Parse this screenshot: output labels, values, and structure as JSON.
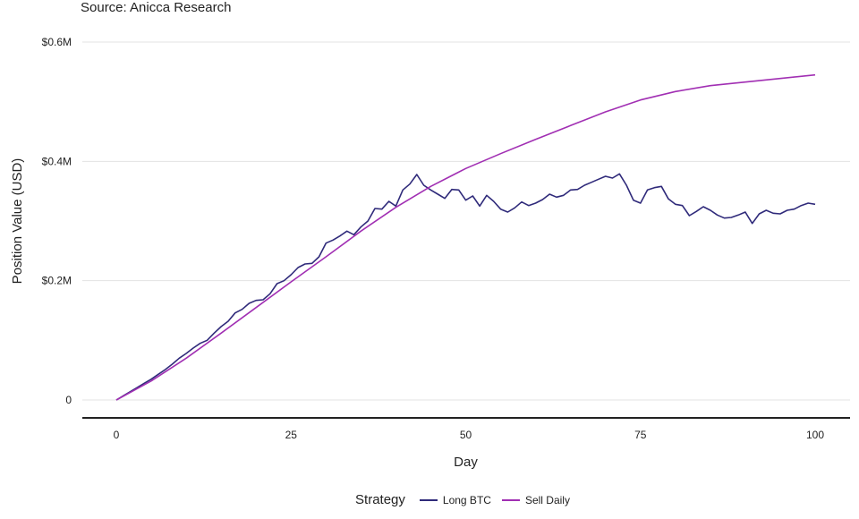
{
  "subtitle": "Source: Anicca Research",
  "chart_data": {
    "type": "line",
    "xlabel": "Day",
    "ylabel": "Position Value (USD)",
    "xlim": [
      0,
      100
    ],
    "ylim": [
      0,
      0.6
    ],
    "x_ticks": [
      0,
      25,
      50,
      75,
      100
    ],
    "x_tick_labels": [
      "0",
      "25",
      "50",
      "75",
      "100"
    ],
    "y_ticks": [
      0,
      0.2,
      0.4,
      0.6
    ],
    "y_tick_labels": [
      "0",
      "$0.2M",
      "$0.4M",
      "$0.6M"
    ],
    "y_unit": "million USD",
    "grid": true,
    "legend_title": "Strategy",
    "legend_position": "bottom",
    "series": [
      {
        "name": "Long BTC",
        "color": "#2f2a7a",
        "x": [
          0,
          1,
          2,
          3,
          4,
          5,
          6,
          7,
          8,
          9,
          10,
          11,
          12,
          13,
          14,
          15,
          16,
          17,
          18,
          19,
          20,
          21,
          22,
          23,
          24,
          25,
          26,
          27,
          28,
          29,
          30,
          31,
          32,
          33,
          34,
          35,
          36,
          37,
          38,
          39,
          40,
          41,
          42,
          43,
          44,
          45,
          46,
          47,
          48,
          49,
          50,
          51,
          52,
          53,
          54,
          55,
          56,
          57,
          58,
          59,
          60,
          61,
          62,
          63,
          64,
          65,
          66,
          67,
          68,
          69,
          70,
          71,
          72,
          73,
          74,
          75,
          76,
          77,
          78,
          79,
          80,
          81,
          82,
          83,
          84,
          85,
          86,
          87,
          88,
          89,
          90,
          91,
          92,
          93,
          94,
          95,
          96,
          97,
          98,
          99,
          100
        ],
        "values": [
          0,
          0.007,
          0.014,
          0.021,
          0.028,
          0.035,
          0.043,
          0.051,
          0.06,
          0.07,
          0.078,
          0.087,
          0.095,
          0.1,
          0.112,
          0.123,
          0.132,
          0.146,
          0.152,
          0.162,
          0.167,
          0.168,
          0.178,
          0.195,
          0.2,
          0.21,
          0.222,
          0.228,
          0.229,
          0.24,
          0.263,
          0.268,
          0.275,
          0.283,
          0.277,
          0.29,
          0.3,
          0.321,
          0.32,
          0.333,
          0.325,
          0.352,
          0.362,
          0.378,
          0.36,
          0.352,
          0.345,
          0.338,
          0.353,
          0.352,
          0.335,
          0.342,
          0.325,
          0.343,
          0.333,
          0.32,
          0.315,
          0.322,
          0.332,
          0.326,
          0.33,
          0.336,
          0.345,
          0.34,
          0.343,
          0.352,
          0.353,
          0.36,
          0.365,
          0.37,
          0.375,
          0.372,
          0.379,
          0.36,
          0.335,
          0.33,
          0.352,
          0.356,
          0.358,
          0.337,
          0.328,
          0.326,
          0.309,
          0.316,
          0.324,
          0.318,
          0.31,
          0.305,
          0.306,
          0.31,
          0.315,
          0.296,
          0.312,
          0.318,
          0.313,
          0.312,
          0.318,
          0.32,
          0.326,
          0.33,
          0.328
        ]
      },
      {
        "name": "Sell Daily",
        "color": "#a12fb3",
        "x": [
          0,
          5,
          10,
          15,
          20,
          25,
          30,
          35,
          40,
          45,
          50,
          55,
          60,
          65,
          70,
          75,
          80,
          85,
          90,
          95,
          100
        ],
        "values": [
          0,
          0.032,
          0.07,
          0.112,
          0.155,
          0.198,
          0.24,
          0.283,
          0.323,
          0.358,
          0.388,
          0.413,
          0.437,
          0.46,
          0.483,
          0.503,
          0.517,
          0.527,
          0.533,
          0.539,
          0.545
        ]
      }
    ]
  }
}
